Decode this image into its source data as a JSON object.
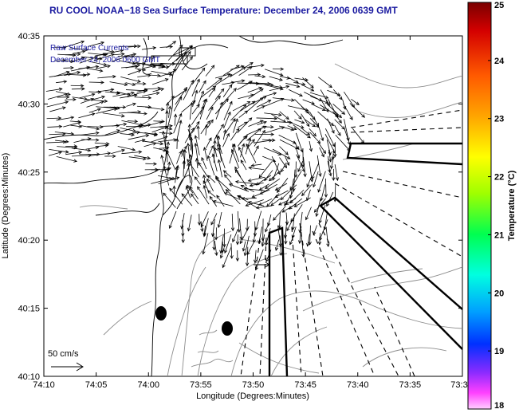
{
  "title": "RU COOL  NOAA−18  Sea Surface Temperature:  December 24, 2006 0639 GMT",
  "inset": {
    "line1": "Raw Surface Currents",
    "line2": "December 24, 2006 0600 GMT"
  },
  "scale_label": "50 cm/s",
  "x_axis": {
    "label": "Longitude (Degrees:Minutes)",
    "ticks": [
      "74:10",
      "74:05",
      "74:00",
      "73:55",
      "73:50",
      "73:45",
      "73:40",
      "73:35",
      "73:3"
    ]
  },
  "y_axis": {
    "label": "Latitude (Degrees:Minutes)",
    "ticks": [
      "40:35",
      "40:30",
      "40:25",
      "40:20",
      "40:15",
      "40:10"
    ]
  },
  "colorbar": {
    "label": "Temperature (°C)",
    "ticks": [
      "25",
      "24",
      "23",
      "22",
      "21",
      "20",
      "19",
      "18"
    ],
    "min": 18,
    "max": 25
  },
  "colors": {
    "title": "#1a1aa0",
    "land_outline": "#000000",
    "contours": "#888888",
    "vectors": "#000000"
  }
}
